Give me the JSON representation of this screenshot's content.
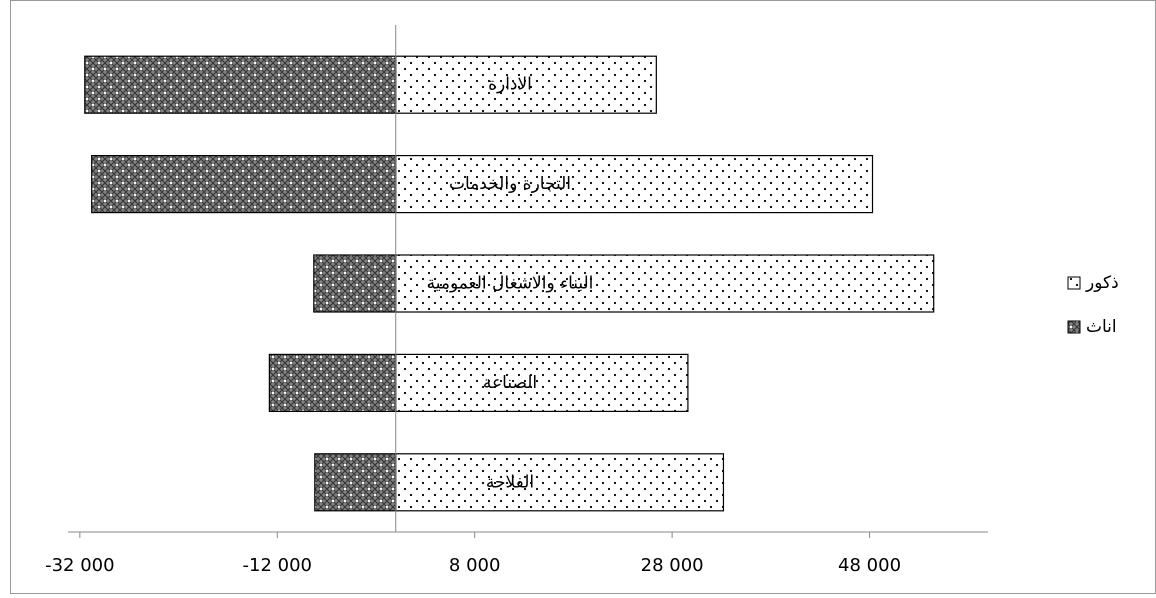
{
  "chart_data": {
    "type": "diverging-bar",
    "categories": [
      "الادارة",
      "التجارة والخدمات",
      "البناء والاشغال العمومية",
      "الصناعة",
      "الفلاحة"
    ],
    "series": [
      {
        "name": "ذكور",
        "color": "#ffffff",
        "values": [
          26400,
          48300,
          54500,
          29600,
          33200
        ]
      },
      {
        "name": "اناث",
        "color": "#7f7f7f",
        "values": [
          -31500,
          -30800,
          -8300,
          -12800,
          -8200
        ]
      }
    ],
    "xlim": [
      -33200,
      60000
    ],
    "xticks": [
      {
        "value": -32000,
        "label": "-32 000"
      },
      {
        "value": -12000,
        "label": "-12 000"
      },
      {
        "value": 8000,
        "label": "8 000"
      },
      {
        "value": 28000,
        "label": "28 000"
      },
      {
        "value": 48000,
        "label": "48 000"
      }
    ],
    "legend": "right"
  }
}
